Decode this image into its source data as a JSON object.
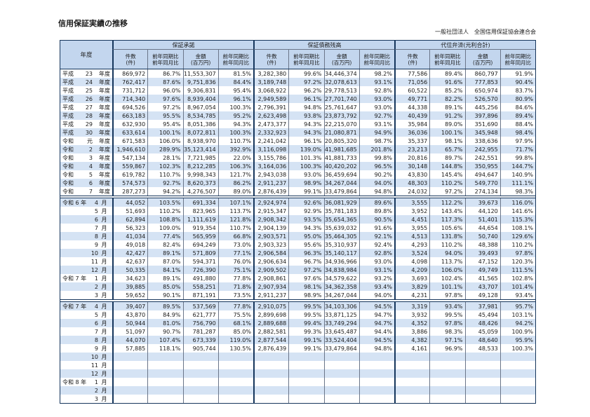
{
  "page": {
    "title": "信用保証実績の推移",
    "org": "一般社団法人　全国信用保証協会連合会"
  },
  "colors": {
    "header_bg": "#c3d6ee",
    "stripe_row": "#d5e3f4",
    "border_major": "#16365c",
    "border_minor": "#6b7689"
  },
  "table": {
    "year_header": "年度",
    "groups": [
      {
        "label": "保証承諾"
      },
      {
        "label": "保証債務残高"
      },
      {
        "label": "代位弁済(元利合計)"
      }
    ],
    "sub_headers": [
      {
        "l1": "件数",
        "l2": "(件)"
      },
      {
        "l1": "前年同期比",
        "l2": "前年同月比"
      },
      {
        "l1": "金額",
        "l2": "(百万円)"
      },
      {
        "l1": "前年同期比",
        "l2": "前年同月比"
      }
    ],
    "sections": [
      {
        "name": "annual",
        "rows": [
          {
            "era": "平成",
            "n": "23",
            "u": "年度",
            "v": [
              "869,972",
              "86.7%",
              "11,553,307",
              "81.5%",
              "3,282,380",
              "99.6%",
              "34,446,374",
              "98.2%",
              "77,586",
              "89.4%",
              "860,797",
              "91.9%"
            ]
          },
          {
            "era": "平成",
            "n": "24",
            "u": "年度",
            "v": [
              "762,417",
              "87.6%",
              "9,751,836",
              "84.4%",
              "3,189,748",
              "97.2%",
              "32,078,613",
              "93.1%",
              "71,056",
              "91.6%",
              "777,853",
              "90.4%"
            ]
          },
          {
            "era": "平成",
            "n": "25",
            "u": "年度",
            "v": [
              "731,712",
              "96.0%",
              "9,306,831",
              "95.4%",
              "3,068,922",
              "96.2%",
              "29,778,513",
              "92.8%",
              "60,522",
              "85.2%",
              "650,974",
              "83.7%"
            ]
          },
          {
            "era": "平成",
            "n": "26",
            "u": "年度",
            "v": [
              "714,340",
              "97.6%",
              "8,939,404",
              "96.1%",
              "2,949,589",
              "96.1%",
              "27,701,740",
              "93.0%",
              "49,771",
              "82.2%",
              "526,570",
              "80.9%"
            ]
          },
          {
            "era": "平成",
            "n": "27",
            "u": "年度",
            "v": [
              "694,526",
              "97.2%",
              "8,967,054",
              "100.3%",
              "2,796,391",
              "94.8%",
              "25,761,647",
              "93.0%",
              "44,338",
              "89.1%",
              "445,256",
              "84.6%"
            ]
          },
          {
            "era": "平成",
            "n": "28",
            "u": "年度",
            "v": [
              "663,183",
              "95.5%",
              "8,534,785",
              "95.2%",
              "2,623,498",
              "93.8%",
              "23,873,792",
              "92.7%",
              "40,439",
              "91.2%",
              "397,896",
              "89.4%"
            ]
          },
          {
            "era": "平成",
            "n": "29",
            "u": "年度",
            "v": [
              "632,930",
              "95.4%",
              "8,051,386",
              "94.3%",
              "2,473,377",
              "94.3%",
              "22,215,070",
              "93.1%",
              "35,984",
              "89.0%",
              "351,690",
              "88.4%"
            ]
          },
          {
            "era": "平成",
            "n": "30",
            "u": "年度",
            "v": [
              "633,614",
              "100.1%",
              "8,072,811",
              "100.3%",
              "2,332,923",
              "94.3%",
              "21,080,871",
              "94.9%",
              "36,036",
              "100.1%",
              "345,948",
              "98.4%"
            ]
          },
          {
            "era": "令和",
            "n": "元",
            "u": "年度",
            "v": [
              "671,583",
              "106.0%",
              "8,938,970",
              "110.7%",
              "2,241,042",
              "96.1%",
              "20,805,320",
              "98.7%",
              "35,337",
              "98.1%",
              "338,636",
              "97.9%"
            ]
          },
          {
            "era": "令和",
            "n": "2",
            "u": "年度",
            "v": [
              "1,946,610",
              "289.9%",
              "35,123,414",
              "392.9%",
              "3,116,098",
              "139.0%",
              "41,981,685",
              "201.8%",
              "23,213",
              "65.7%",
              "242,955",
              "71.7%"
            ]
          },
          {
            "era": "令和",
            "n": "3",
            "u": "年度",
            "v": [
              "547,134",
              "28.1%",
              "7,721,985",
              "22.0%",
              "3,155,786",
              "101.3%",
              "41,881,733",
              "99.8%",
              "20,816",
              "89.7%",
              "242,551",
              "99.8%"
            ]
          },
          {
            "era": "令和",
            "n": "4",
            "u": "年度",
            "v": [
              "559,867",
              "102.3%",
              "8,212,285",
              "106.3%",
              "3,164,036",
              "100.3%",
              "40,420,202",
              "96.5%",
              "30,148",
              "144.8%",
              "350,955",
              "144.7%"
            ]
          },
          {
            "era": "令和",
            "n": "5",
            "u": "年度",
            "v": [
              "619,782",
              "110.7%",
              "9,998,343",
              "121.7%",
              "2,943,038",
              "93.0%",
              "36,459,694",
              "90.2%",
              "43,830",
              "145.4%",
              "494,647",
              "140.9%"
            ]
          },
          {
            "era": "令和",
            "n": "6",
            "u": "年度",
            "v": [
              "574,573",
              "92.7%",
              "8,620,373",
              "86.2%",
              "2,911,237",
              "98.9%",
              "34,267,044",
              "94.0%",
              "48,303",
              "110.2%",
              "549,770",
              "111.1%"
            ]
          },
          {
            "era": "令和",
            "n": "7",
            "u": "年度",
            "v": [
              "287,273",
              "94.2%",
              "4,276,507",
              "89.0%",
              "2,876,439",
              "99.1%",
              "33,479,864",
              "94.8%",
              "24,032",
              "97.2%",
              "274,134",
              "98.3%"
            ]
          }
        ]
      },
      {
        "name": "monthly_r6",
        "rows": [
          {
            "era": "令和 6 年",
            "n": "4",
            "u": "月",
            "v": [
              "44,052",
              "103.5%",
              "691,334",
              "107.1%",
              "2,924,974",
              "92.6%",
              "36,081,929",
              "89.6%",
              "3,555",
              "112.2%",
              "39,673",
              "116.0%"
            ]
          },
          {
            "era": "",
            "n": "5",
            "u": "月",
            "v": [
              "51,693",
              "110.2%",
              "823,965",
              "113.7%",
              "2,915,347",
              "92.9%",
              "35,781,183",
              "89.8%",
              "3,952",
              "143.4%",
              "44,120",
              "141.6%"
            ]
          },
          {
            "era": "",
            "n": "6",
            "u": "月",
            "v": [
              "62,894",
              "108.8%",
              "1,111,619",
              "121.8%",
              "2,908,342",
              "93.5%",
              "35,654,365",
              "90.5%",
              "4,451",
              "117.3%",
              "51,401",
              "115.3%"
            ]
          },
          {
            "era": "",
            "n": "7",
            "u": "月",
            "v": [
              "56,323",
              "109.0%",
              "919,354",
              "110.7%",
              "2,904,139",
              "94.3%",
              "35,639,032",
              "91.6%",
              "3,955",
              "105.6%",
              "44,654",
              "108.1%"
            ]
          },
          {
            "era": "",
            "n": "8",
            "u": "月",
            "v": [
              "41,034",
              "77.4%",
              "565,959",
              "66.8%",
              "2,903,571",
              "95.0%",
              "35,464,305",
              "92.1%",
              "4,513",
              "131.8%",
              "50,740",
              "129.6%"
            ]
          },
          {
            "era": "",
            "n": "9",
            "u": "月",
            "v": [
              "49,018",
              "82.4%",
              "694,249",
              "73.0%",
              "2,903,323",
              "95.6%",
              "35,310,937",
              "92.4%",
              "4,293",
              "110.2%",
              "48,388",
              "110.2%"
            ]
          },
          {
            "era": "",
            "n": "10",
            "u": "月",
            "v": [
              "42,427",
              "89.1%",
              "571,809",
              "77.1%",
              "2,906,584",
              "96.3%",
              "35,140,117",
              "92.8%",
              "3,524",
              "94.0%",
              "39,493",
              "97.8%"
            ]
          },
          {
            "era": "",
            "n": "11",
            "u": "月",
            "v": [
              "42,637",
              "87.0%",
              "594,371",
              "76.0%",
              "2,906,634",
              "96.7%",
              "34,936,966",
              "93.0%",
              "4,098",
              "113.7%",
              "47,152",
              "120.3%"
            ]
          },
          {
            "era": "",
            "n": "12",
            "u": "月",
            "v": [
              "50,335",
              "84.1%",
              "726,390",
              "75.1%",
              "2,909,502",
              "97.2%",
              "34,838,984",
              "93.1%",
              "4,209",
              "106.0%",
              "49,749",
              "111.5%"
            ]
          },
          {
            "era": "令和 7 年",
            "n": "1",
            "u": "月",
            "v": [
              "34,623",
              "89.1%",
              "491,880",
              "77.8%",
              "2,908,861",
              "97.6%",
              "34,579,622",
              "93.2%",
              "3,693",
              "102.4%",
              "41,565",
              "102.8%"
            ]
          },
          {
            "era": "",
            "n": "2",
            "u": "月",
            "v": [
              "39,885",
              "85.0%",
              "558,251",
              "71.8%",
              "2,907,934",
              "98.1%",
              "34,362,358",
              "93.4%",
              "3,829",
              "101.1%",
              "43,707",
              "101.4%"
            ]
          },
          {
            "era": "",
            "n": "3",
            "u": "月",
            "v": [
              "59,652",
              "90.1%",
              "871,191",
              "73.5%",
              "2,911,237",
              "98.9%",
              "34,267,044",
              "94.0%",
              "4,231",
              "97.8%",
              "49,128",
              "93.4%"
            ]
          }
        ]
      },
      {
        "name": "monthly_r7",
        "rows": [
          {
            "era": "令和 7 年",
            "n": "4",
            "u": "月",
            "v": [
              "39,407",
              "89.5%",
              "537,569",
              "77.8%",
              "2,910,075",
              "99.5%",
              "34,103,306",
              "94.5%",
              "3,319",
              "93.4%",
              "37,981",
              "95.7%"
            ]
          },
          {
            "era": "",
            "n": "5",
            "u": "月",
            "v": [
              "43,870",
              "84.9%",
              "621,777",
              "75.5%",
              "2,899,698",
              "99.5%",
              "33,871,125",
              "94.7%",
              "3,932",
              "99.5%",
              "45,494",
              "103.1%"
            ]
          },
          {
            "era": "",
            "n": "6",
            "u": "月",
            "v": [
              "50,944",
              "81.0%",
              "756,790",
              "68.1%",
              "2,889,688",
              "99.4%",
              "33,749,294",
              "94.7%",
              "4,352",
              "97.8%",
              "48,426",
              "94.2%"
            ]
          },
          {
            "era": "",
            "n": "7",
            "u": "月",
            "v": [
              "51,097",
              "90.7%",
              "781,287",
              "85.0%",
              "2,882,581",
              "99.3%",
              "33,645,487",
              "94.4%",
              "3,886",
              "98.3%",
              "45,059",
              "100.9%"
            ]
          },
          {
            "era": "",
            "n": "8",
            "u": "月",
            "v": [
              "44,070",
              "107.4%",
              "673,339",
              "119.0%",
              "2,877,544",
              "99.1%",
              "33,524,404",
              "94.5%",
              "4,382",
              "97.1%",
              "48,640",
              "95.9%"
            ]
          },
          {
            "era": "",
            "n": "9",
            "u": "月",
            "v": [
              "57,885",
              "118.1%",
              "905,744",
              "130.5%",
              "2,876,439",
              "99.1%",
              "33,479,864",
              "94.8%",
              "4,161",
              "96.9%",
              "48,533",
              "100.3%"
            ]
          },
          {
            "era": "",
            "n": "10",
            "u": "月",
            "v": []
          },
          {
            "era": "",
            "n": "11",
            "u": "月",
            "v": []
          },
          {
            "era": "",
            "n": "12",
            "u": "月",
            "v": []
          },
          {
            "era": "令和 8 年",
            "n": "1",
            "u": "月",
            "v": []
          },
          {
            "era": "",
            "n": "2",
            "u": "月",
            "v": []
          },
          {
            "era": "",
            "n": "3",
            "u": "月",
            "v": []
          }
        ]
      }
    ]
  }
}
